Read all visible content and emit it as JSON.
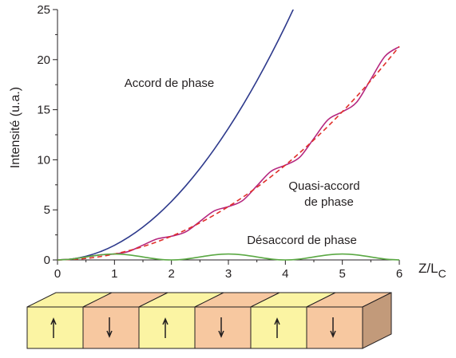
{
  "chart_data": {
    "type": "line",
    "ylabel": "Intensité (u.a.)",
    "xlabel": "Z/L",
    "xlabel_sub": "C",
    "xlim": [
      0,
      6
    ],
    "xticks": [
      0,
      1,
      2,
      3,
      4,
      5,
      6
    ],
    "ylim": [
      0,
      25
    ],
    "yticks": [
      0,
      5,
      10,
      15,
      20,
      25
    ],
    "annotations": [
      "Accord de phase",
      "Quasi-accord",
      "de phase",
      "Désaccord de phase"
    ],
    "series": [
      {
        "name": "Accord de phase",
        "color": "#2e3a8c",
        "dash": false,
        "x": [
          0,
          0.25,
          0.5,
          0.75,
          1,
          1.25,
          1.5,
          1.75,
          2,
          2.25,
          2.5,
          2.75,
          3,
          3.25,
          3.5,
          3.75,
          4,
          4.25
        ],
        "values": [
          0,
          0.091,
          0.365,
          0.821,
          1.46,
          2.281,
          3.285,
          4.471,
          5.84,
          7.391,
          9.125,
          11.041,
          13.14,
          15.421,
          17.885,
          20.531,
          23.36,
          26.371
        ]
      },
      {
        "name": "Quasi-accord de phase",
        "color": "#b5267f",
        "dash": false,
        "x": [
          0,
          0.25,
          0.5,
          0.75,
          1,
          1.25,
          1.5,
          1.75,
          2,
          2.25,
          2.5,
          2.75,
          3,
          3.25,
          3.5,
          3.75,
          4,
          4.25,
          4.5,
          4.75,
          5,
          5.25,
          5.5,
          5.75,
          6
        ],
        "values": [
          0,
          0.087,
          0.296,
          0.505,
          0.592,
          0.851,
          1.479,
          2.1,
          2.366,
          2.8,
          3.845,
          4.891,
          5.324,
          5.931,
          7.395,
          8.859,
          9.466,
          10.245,
          12.128,
          14.01,
          14.79,
          15.743,
          18.044,
          20.345,
          21.298
        ]
      },
      {
        "name": "Quasi-accord de phase (moyenne)",
        "color": "#e0302a",
        "dash": true,
        "x": [
          0,
          0.5,
          1,
          1.5,
          2,
          2.5,
          3,
          3.5,
          4,
          4.5,
          5,
          5.5,
          6
        ],
        "values": [
          0,
          0.148,
          0.592,
          1.332,
          2.368,
          3.7,
          5.328,
          7.252,
          9.472,
          11.988,
          14.8,
          17.908,
          21.312
        ]
      },
      {
        "name": "Désaccord de phase",
        "color": "#5aa843",
        "dash": false,
        "x": [
          0,
          0.25,
          0.5,
          0.75,
          1,
          1.25,
          1.5,
          1.75,
          2,
          2.25,
          2.5,
          2.75,
          3,
          3.25,
          3.5,
          3.75,
          4,
          4.25,
          4.5,
          4.75,
          5,
          5.25,
          5.5,
          5.75,
          6
        ],
        "values": [
          0,
          0.087,
          0.296,
          0.505,
          0.592,
          0.505,
          0.296,
          0.087,
          0,
          0.087,
          0.296,
          0.505,
          0.592,
          0.505,
          0.296,
          0.087,
          0,
          0.087,
          0.296,
          0.505,
          0.592,
          0.505,
          0.296,
          0.087,
          0
        ]
      }
    ]
  }
}
